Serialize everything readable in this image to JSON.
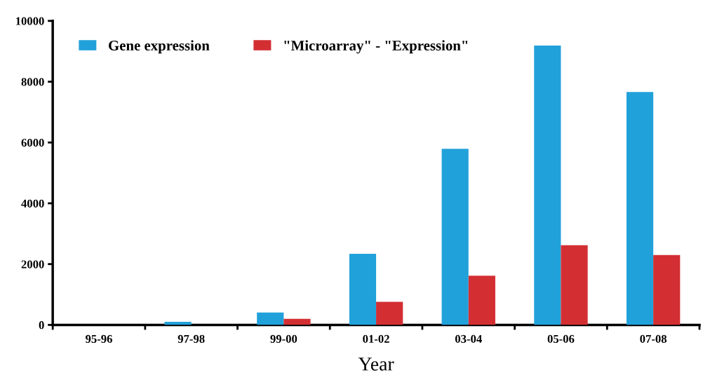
{
  "chart_data": {
    "type": "bar",
    "xlabel": "Year",
    "categories": [
      "95-96",
      "97-98",
      "99-00",
      "01-02",
      "03-04",
      "05-06",
      "07-08"
    ],
    "series": [
      {
        "name": "Gene expression",
        "color": "#21a1da",
        "values": [
          0,
          100,
          410,
          2340,
          5790,
          9190,
          7660
        ]
      },
      {
        "name": "\"Microarray\" - \"Expression\"",
        "color": "#d32f33",
        "values": [
          0,
          0,
          200,
          760,
          1620,
          2620,
          2300
        ]
      }
    ],
    "ylim": [
      0,
      10000
    ],
    "yticks": [
      0,
      2000,
      4000,
      6000,
      8000,
      10000
    ],
    "grid": false,
    "legend": "top left"
  }
}
